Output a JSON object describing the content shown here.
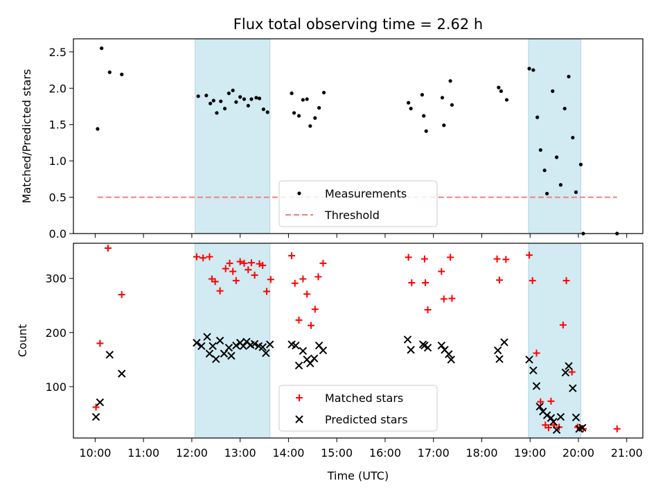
{
  "chart_data": {
    "title": "Flux total observing time = 2.62 h",
    "xlabel": "Time (UTC)",
    "xlim": [
      "09:33",
      "21:20"
    ],
    "xticks": [
      "10:00",
      "11:00",
      "12:00",
      "13:00",
      "14:00",
      "15:00",
      "16:00",
      "17:00",
      "18:00",
      "19:00",
      "20:00",
      "21:00"
    ],
    "shaded_intervals": [
      {
        "start": "12:04",
        "end": "13:37",
        "color": "#add8e6"
      },
      {
        "start": "18:58",
        "end": "20:03",
        "color": "#add8e6"
      }
    ],
    "panels": [
      {
        "type": "scatter",
        "ylabel": "Matched/Predicted stars",
        "ylim": [
          0,
          2.68
        ],
        "yticks": [
          "0.0",
          "0.5",
          "1.0",
          "1.5",
          "2.0",
          "2.5"
        ],
        "legend": "lower-center",
        "series": [
          {
            "name": "Measurements",
            "marker": "dot",
            "color": "#000000",
            "points": [
              [
                "10:03",
                1.44
              ],
              [
                "10:08",
                2.55
              ],
              [
                "10:18",
                2.22
              ],
              [
                "10:33",
                2.19
              ],
              [
                "12:08",
                1.89
              ],
              [
                "12:18",
                1.9
              ],
              [
                "12:23",
                1.79
              ],
              [
                "12:27",
                1.83
              ],
              [
                "12:31",
                1.66
              ],
              [
                "12:36",
                1.82
              ],
              [
                "12:41",
                1.72
              ],
              [
                "12:46",
                1.93
              ],
              [
                "12:51",
                1.97
              ],
              [
                "12:55",
                1.81
              ],
              [
                "13:00",
                1.88
              ],
              [
                "13:05",
                1.85
              ],
              [
                "13:10",
                1.76
              ],
              [
                "13:14",
                1.85
              ],
              [
                "13:20",
                1.87
              ],
              [
                "13:24",
                1.86
              ],
              [
                "13:29",
                1.71
              ],
              [
                "13:34",
                1.67
              ],
              [
                "14:04",
                1.93
              ],
              [
                "14:07",
                1.66
              ],
              [
                "14:13",
                1.62
              ],
              [
                "14:18",
                1.84
              ],
              [
                "14:23",
                1.85
              ],
              [
                "14:27",
                1.48
              ],
              [
                "14:33",
                1.59
              ],
              [
                "14:38",
                1.73
              ],
              [
                "14:44",
                1.94
              ],
              [
                "16:29",
                1.8
              ],
              [
                "16:32",
                1.72
              ],
              [
                "16:46",
                1.91
              ],
              [
                "16:48",
                1.62
              ],
              [
                "16:51",
                1.41
              ],
              [
                "17:11",
                1.87
              ],
              [
                "17:13",
                1.49
              ],
              [
                "17:21",
                2.1
              ],
              [
                "17:23",
                1.77
              ],
              [
                "18:21",
                2.01
              ],
              [
                "18:24",
                1.96
              ],
              [
                "18:31",
                1.84
              ],
              [
                "18:59",
                2.27
              ],
              [
                "19:04",
                2.25
              ],
              [
                "19:09",
                1.6
              ],
              [
                "19:13",
                1.15
              ],
              [
                "19:18",
                0.87
              ],
              [
                "19:21",
                0.55
              ],
              [
                "19:28",
                1.96
              ],
              [
                "19:33",
                1.05
              ],
              [
                "19:38",
                0.67
              ],
              [
                "19:43",
                1.72
              ],
              [
                "19:48",
                2.16
              ],
              [
                "19:53",
                1.32
              ],
              [
                "19:57",
                0.57
              ],
              [
                "20:03",
                0.95
              ],
              [
                "20:06",
                0.0
              ],
              [
                "20:48",
                0.0
              ]
            ]
          },
          {
            "name": "Threshold",
            "type": "line",
            "style": "dashed",
            "color": "#f08080",
            "x": [
              "10:03",
              "20:48"
            ],
            "y": [
              0.5,
              0.5
            ]
          }
        ]
      },
      {
        "type": "scatter",
        "ylabel": "Count",
        "ylim": [
          5,
          365
        ],
        "yticks": [
          "100",
          "200",
          "300"
        ],
        "legend": "lower-center",
        "series": [
          {
            "name": "Matched stars",
            "marker": "plus",
            "color": "#ff0000",
            "points": [
              [
                "10:01",
                62
              ],
              [
                "10:06",
                180
              ],
              [
                "10:16",
                356
              ],
              [
                "10:33",
                270
              ],
              [
                "12:06",
                340
              ],
              [
                "12:14",
                338
              ],
              [
                "12:22",
                340
              ],
              [
                "12:25",
                299
              ],
              [
                "12:29",
                294
              ],
              [
                "12:35",
                277
              ],
              [
                "12:42",
                318
              ],
              [
                "12:47",
                328
              ],
              [
                "12:51",
                313
              ],
              [
                "12:55",
                296
              ],
              [
                "13:00",
                331
              ],
              [
                "13:05",
                328
              ],
              [
                "13:10",
                316
              ],
              [
                "13:14",
                329
              ],
              [
                "13:18",
                306
              ],
              [
                "13:24",
                327
              ],
              [
                "13:28",
                324
              ],
              [
                "13:33",
                276
              ],
              [
                "13:38",
                298
              ],
              [
                "14:04",
                342
              ],
              [
                "14:08",
                291
              ],
              [
                "14:13",
                223
              ],
              [
                "14:18",
                299
              ],
              [
                "14:23",
                271
              ],
              [
                "14:28",
                213
              ],
              [
                "14:33",
                243
              ],
              [
                "14:37",
                303
              ],
              [
                "14:43",
                328
              ],
              [
                "16:29",
                339
              ],
              [
                "16:33",
                292
              ],
              [
                "16:49",
                336
              ],
              [
                "16:50",
                292
              ],
              [
                "16:53",
                242
              ],
              [
                "17:10",
                313
              ],
              [
                "17:13",
                262
              ],
              [
                "17:21",
                339
              ],
              [
                "17:23",
                263
              ],
              [
                "18:19",
                336
              ],
              [
                "18:22",
                297
              ],
              [
                "18:30",
                335
              ],
              [
                "18:59",
                343
              ],
              [
                "19:03",
                296
              ],
              [
                "19:08",
                162
              ],
              [
                "19:13",
                72
              ],
              [
                "19:19",
                29
              ],
              [
                "19:23",
                24
              ],
              [
                "19:26",
                73
              ],
              [
                "19:30",
                29
              ],
              [
                "19:36",
                25
              ],
              [
                "19:41",
                214
              ],
              [
                "19:45",
                296
              ],
              [
                "19:52",
                127
              ],
              [
                "19:59",
                25
              ],
              [
                "20:02",
                24
              ],
              [
                "20:06",
                22
              ],
              [
                "20:48",
                22
              ]
            ]
          },
          {
            "name": "Predicted stars",
            "marker": "cross",
            "color": "#000000",
            "points": [
              [
                "10:01",
                44
              ],
              [
                "10:06",
                71
              ],
              [
                "10:18",
                159
              ],
              [
                "10:33",
                124
              ],
              [
                "12:06",
                181
              ],
              [
                "12:12",
                175
              ],
              [
                "12:19",
                192
              ],
              [
                "12:22",
                161
              ],
              [
                "12:26",
                175
              ],
              [
                "12:30",
                151
              ],
              [
                "12:35",
                185
              ],
              [
                "12:40",
                161
              ],
              [
                "12:46",
                172
              ],
              [
                "12:49",
                157
              ],
              [
                "12:55",
                176
              ],
              [
                "13:00",
                181
              ],
              [
                "13:04",
                175
              ],
              [
                "13:08",
                183
              ],
              [
                "13:13",
                177
              ],
              [
                "13:18",
                179
              ],
              [
                "13:23",
                175
              ],
              [
                "13:28",
                173
              ],
              [
                "13:32",
                162
              ],
              [
                "13:37",
                178
              ],
              [
                "14:04",
                178
              ],
              [
                "14:09",
                176
              ],
              [
                "14:13",
                139
              ],
              [
                "14:18",
                166
              ],
              [
                "14:23",
                150
              ],
              [
                "14:27",
                143
              ],
              [
                "14:32",
                152
              ],
              [
                "14:38",
                176
              ],
              [
                "14:43",
                167
              ],
              [
                "16:28",
                187
              ],
              [
                "16:32",
                168
              ],
              [
                "16:47",
                178
              ],
              [
                "16:49",
                176
              ],
              [
                "16:53",
                172
              ],
              [
                "17:10",
                176
              ],
              [
                "17:14",
                168
              ],
              [
                "17:19",
                160
              ],
              [
                "17:22",
                150
              ],
              [
                "18:20",
                167
              ],
              [
                "18:22",
                151
              ],
              [
                "18:28",
                182
              ],
              [
                "18:59",
                150
              ],
              [
                "19:04",
                130
              ],
              [
                "19:08",
                101
              ],
              [
                "19:12",
                63
              ],
              [
                "19:16",
                54
              ],
              [
                "19:21",
                47
              ],
              [
                "19:26",
                42
              ],
              [
                "19:29",
                35
              ],
              [
                "19:33",
                20
              ],
              [
                "19:38",
                44
              ],
              [
                "19:44",
                126
              ],
              [
                "19:48",
                138
              ],
              [
                "19:53",
                97
              ],
              [
                "19:57",
                43
              ],
              [
                "20:01",
                22
              ],
              [
                "20:05",
                24
              ]
            ]
          }
        ]
      }
    ]
  }
}
